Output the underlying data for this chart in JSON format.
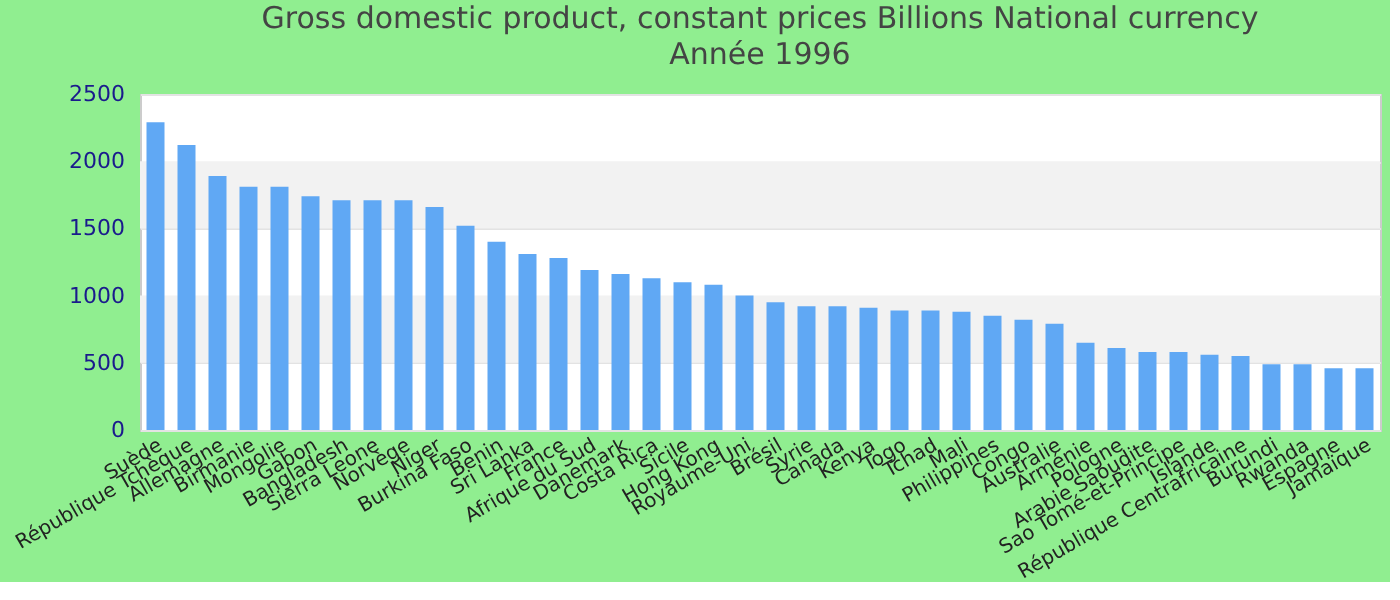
{
  "chart_data": {
    "type": "bar",
    "title": "Gross domestic product, constant prices Billions National currency",
    "subtitle": "Année 1996",
    "categories": [
      "Suède",
      "République Tchèque",
      "Allemagne",
      "Birmanie",
      "Mongolie",
      "Gabon",
      "Bangladesh",
      "Sierra Leone",
      "Norvège",
      "Niger",
      "Burkina Faso",
      "Benin",
      "Sri Lanka",
      "France",
      "Afrique du Sud",
      "Danemark",
      "Costa Rica",
      "Sicile",
      "Hong Kong",
      "Royaume-Uni",
      "Brésil",
      "Syrie",
      "Canada",
      "Kenya",
      "Togo",
      "Tchad",
      "Mali",
      "Philippines",
      "Congo",
      "Australie",
      "Arménie",
      "Pologne",
      "Arabie Saoudite",
      "Sao Tomé-et-Principe",
      "Islande",
      "République Centrafricaine",
      "Burundi",
      "Rwanda",
      "Espagne",
      "Jamaïque"
    ],
    "values": [
      2290,
      2120,
      1890,
      1810,
      1810,
      1740,
      1710,
      1710,
      1710,
      1660,
      1520,
      1400,
      1310,
      1280,
      1190,
      1160,
      1130,
      1100,
      1080,
      1000,
      950,
      920,
      920,
      910,
      890,
      890,
      880,
      850,
      820,
      790,
      650,
      610,
      580,
      580,
      560,
      550,
      490,
      490,
      460,
      460
    ],
    "color": "#60a8f4",
    "ylim": [
      0,
      2500
    ],
    "yticks": [
      0,
      500,
      1000,
      1500,
      2000,
      2500
    ],
    "grid": "y"
  }
}
